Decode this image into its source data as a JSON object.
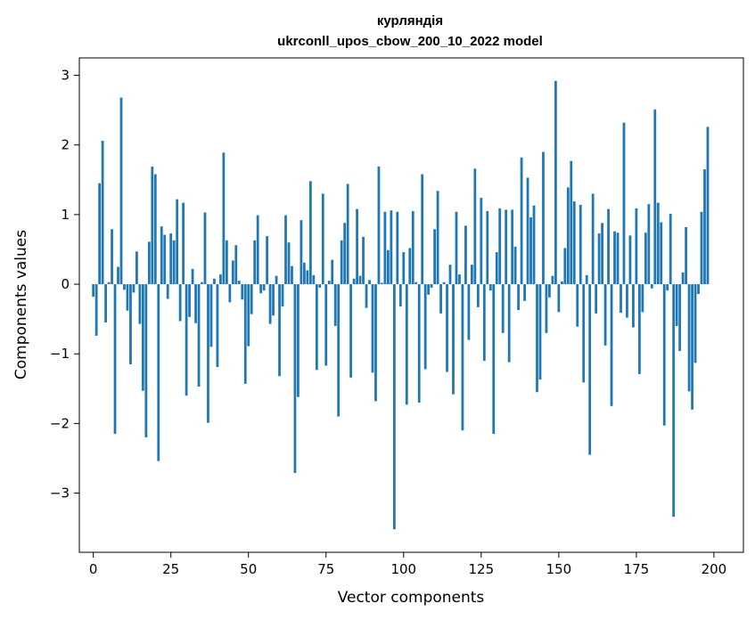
{
  "chart_data": {
    "type": "bar",
    "title_lines": [
      "курляндія",
      "ukrconll_upos_cbow_200_10_2022 model"
    ],
    "xlabel": "Vector components",
    "ylabel": "Components values",
    "xlim": [
      -4.5,
      209.5
    ],
    "ylim": [
      -3.85,
      3.25
    ],
    "x_ticks": [
      0,
      25,
      50,
      75,
      100,
      125,
      150,
      175,
      200
    ],
    "x_tick_labels": [
      "0",
      "25",
      "50",
      "75",
      "100",
      "125",
      "150",
      "175",
      "200"
    ],
    "y_ticks": [
      -3,
      -2,
      -1,
      0,
      1,
      2,
      3
    ],
    "y_tick_labels": [
      "−3",
      "−2",
      "−1",
      "0",
      "1",
      "2",
      "3"
    ],
    "bar_color": "#1f77b4",
    "grid": false,
    "series": [
      {
        "values": [
          -0.18,
          -0.74,
          1.45,
          2.06,
          -0.55,
          0.03,
          0.79,
          -2.15,
          0.25,
          2.68,
          -0.08,
          -0.38,
          -1.15,
          -0.12,
          0.47,
          -0.57,
          -1.53,
          -2.2,
          0.61,
          1.69,
          1.58,
          -2.54,
          0.83,
          0.71,
          -0.21,
          0.73,
          0.63,
          1.22,
          -0.53,
          1.17,
          -1.6,
          -0.47,
          0.22,
          -0.56,
          -1.47,
          0.03,
          1.03,
          -1.99,
          -0.9,
          0.08,
          -1.19,
          0.14,
          1.89,
          0.63,
          -0.26,
          0.34,
          0.56,
          0.05,
          -0.22,
          -1.43,
          -0.89,
          -0.43,
          0.63,
          0.99,
          -0.13,
          -0.09,
          0.69,
          -0.57,
          -0.45,
          0.12,
          -1.32,
          -0.32,
          0.99,
          0.6,
          0.26,
          -2.71,
          -1.62,
          0.92,
          0.31,
          0.2,
          1.48,
          0.13,
          -1.23,
          -0.05,
          1.3,
          -1.17,
          0.05,
          0.35,
          -0.6,
          -1.9,
          0.63,
          0.88,
          1.44,
          -1.34,
          0.08,
          1.08,
          0.12,
          0.68,
          -0.34,
          0.06,
          -1.27,
          -1.68,
          1.69,
          0.02,
          1.04,
          0.49,
          1.06,
          -3.52,
          1.04,
          -0.32,
          0.46,
          -1.73,
          0.52,
          1.05,
          0.03,
          -1.7,
          1.58,
          -1.22,
          -0.15,
          -0.05,
          0.79,
          1.34,
          -0.42,
          0.03,
          -1.26,
          0.28,
          -1.58,
          1.04,
          0.14,
          -2.1,
          0.84,
          -0.8,
          0.28,
          1.66,
          -0.33,
          1.24,
          -1.1,
          1.05,
          -0.09,
          -2.15,
          0.46,
          1.09,
          -0.7,
          1.07,
          -1.12,
          1.07,
          0.54,
          -0.37,
          1.82,
          -0.24,
          1.53,
          0.96,
          1.13,
          -1.55,
          -1.37,
          1.9,
          -0.7,
          -0.19,
          0.12,
          2.92,
          -0.4,
          0.04,
          0.52,
          1.39,
          1.77,
          1.19,
          -0.61,
          1.14,
          -1.41,
          0.13,
          -2.45,
          1.3,
          -0.42,
          0.73,
          0.88,
          -0.88,
          1.08,
          -1.75,
          0.76,
          0.74,
          -0.41,
          2.32,
          -0.48,
          0.7,
          -0.62,
          1.09,
          -1.29,
          -0.4,
          0.74,
          1.15,
          -0.06,
          2.51,
          1.17,
          0.89,
          -2.03,
          -0.09,
          1.01,
          -3.34,
          -0.6,
          -0.96,
          0.17,
          0.82,
          -1.54,
          -1.8,
          -1.13,
          -0.14,
          1.04,
          1.65,
          2.26
        ]
      }
    ]
  }
}
